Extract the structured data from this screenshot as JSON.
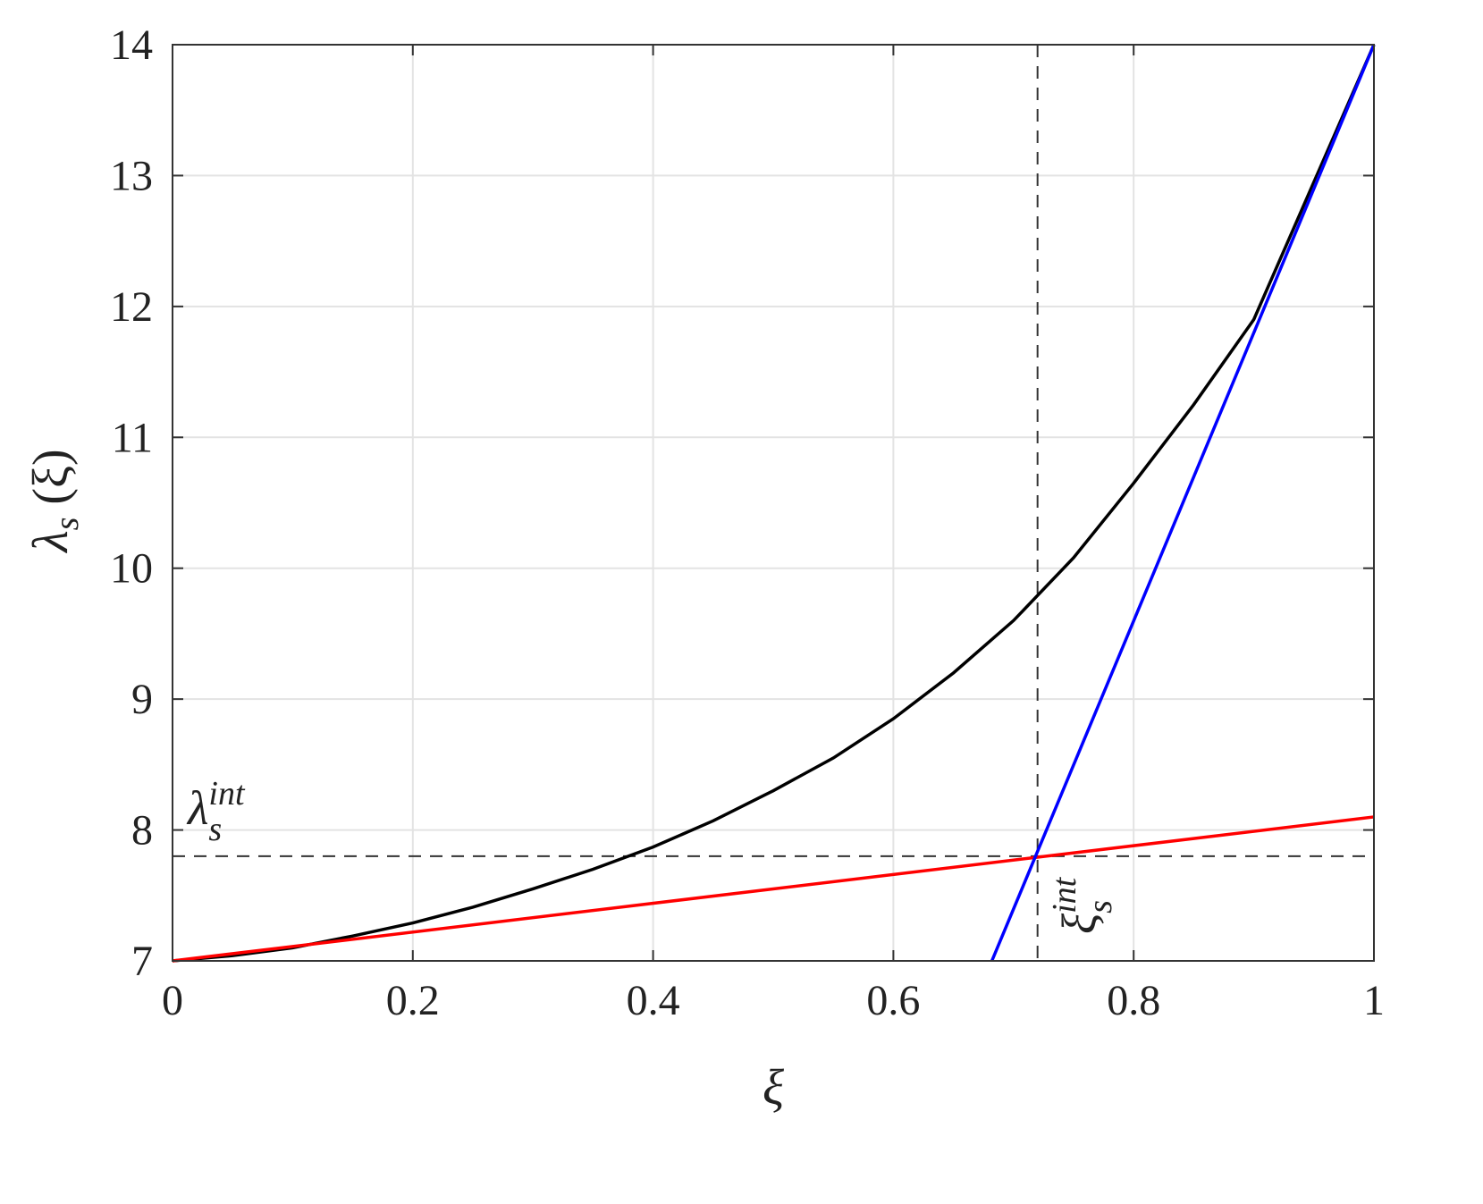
{
  "chart_data": {
    "type": "line",
    "xlabel": "ξ",
    "ylabel": {
      "base": "λ",
      "sub": "s",
      "rest": " (ξ)"
    },
    "xlim": [
      0,
      1
    ],
    "ylim": [
      7,
      14
    ],
    "xticks": [
      0,
      0.2,
      0.4,
      0.6,
      0.8,
      1
    ],
    "yticks": [
      7,
      8,
      9,
      10,
      11,
      12,
      13,
      14
    ],
    "grid": true,
    "series": [
      {
        "color": "#000000",
        "x": [
          0,
          0.05,
          0.1,
          0.15,
          0.2,
          0.25,
          0.3,
          0.35,
          0.4,
          0.45,
          0.5,
          0.55,
          0.6,
          0.65,
          0.7,
          0.75,
          0.8,
          0.85,
          0.9,
          0.95,
          1
        ],
        "values": [
          7,
          7.04,
          7.1,
          7.19,
          7.29,
          7.41,
          7.55,
          7.7,
          7.87,
          8.07,
          8.3,
          8.55,
          8.85,
          9.2,
          9.6,
          10.08,
          10.65,
          11.25,
          11.9,
          12.95,
          14
        ]
      },
      {
        "color": "#ff0000",
        "x": [
          0,
          1
        ],
        "values": [
          7,
          8.1
        ]
      },
      {
        "color": "#0000ff",
        "x": [
          0.682,
          1
        ],
        "values": [
          7,
          14
        ]
      }
    ],
    "reference_lines": {
      "x": 0.72,
      "y": 7.8,
      "color": "#333333"
    },
    "annotations": [
      {
        "base": "λ",
        "sub": "s",
        "sup": "int"
      },
      {
        "base": "ξ",
        "sub": "s",
        "sup": "int"
      }
    ]
  }
}
